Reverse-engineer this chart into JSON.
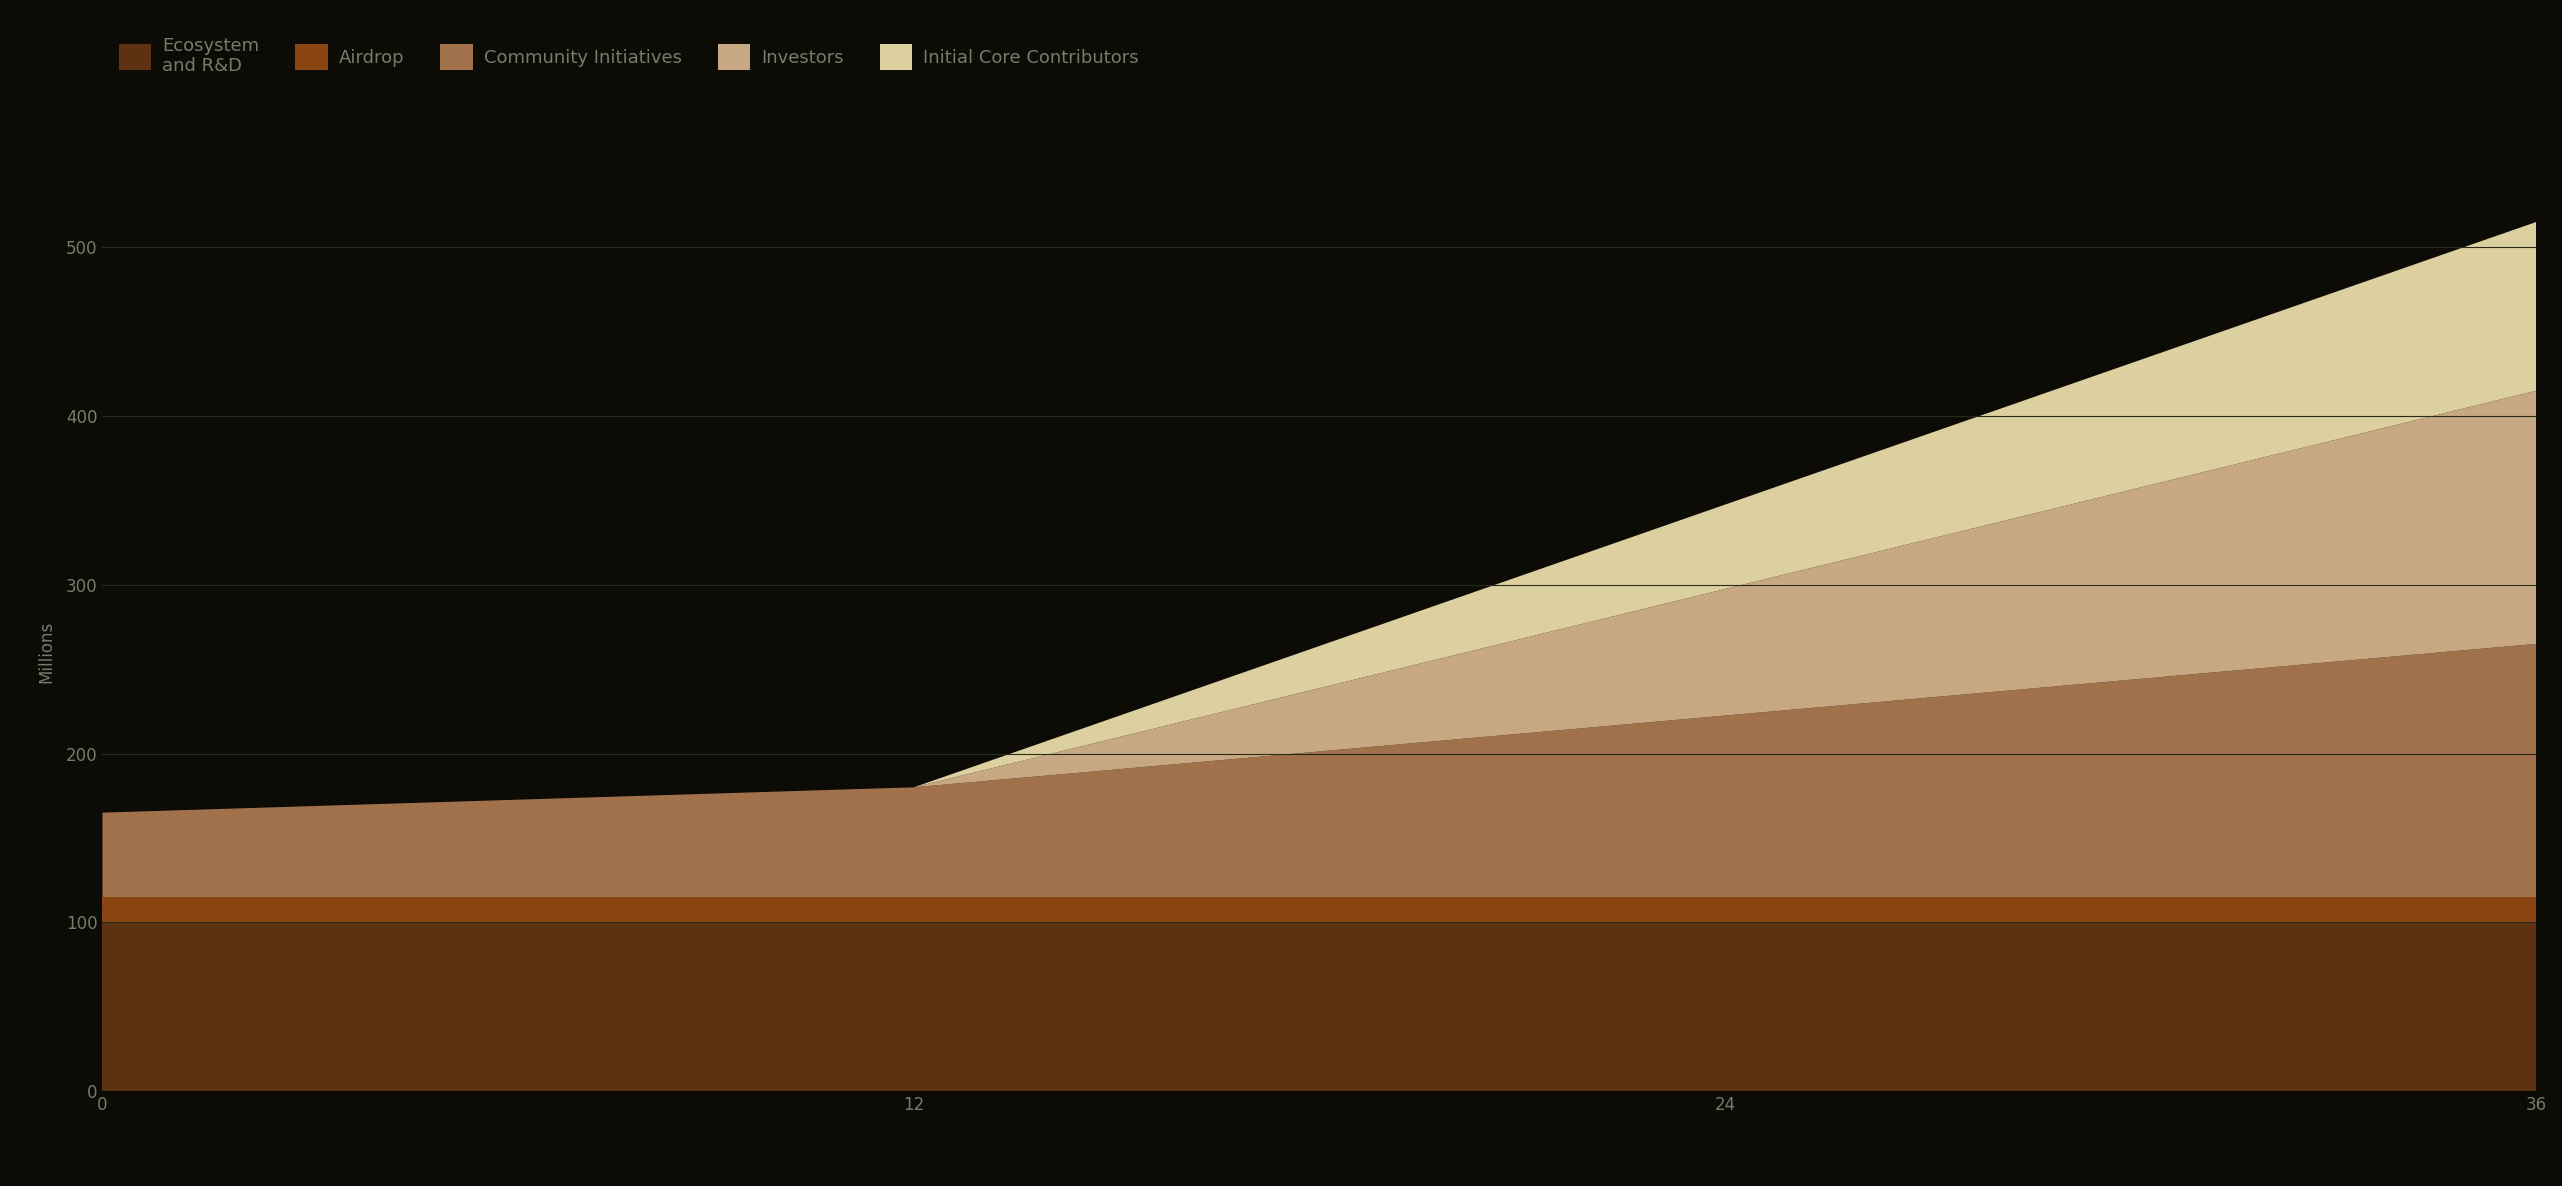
{
  "background_color": "#0d0b05",
  "series_labels": [
    "Ecosystem\nand R&D",
    "Airdrop",
    "Community Initiatives",
    "Investors",
    "Initial Core Contributors"
  ],
  "series_colors": [
    "#5C3210",
    "#8B4513",
    "#A0714A",
    "#C8A882",
    "#DDD0A0"
  ],
  "x_max": 36,
  "x_ticks": [
    0,
    12,
    24,
    36
  ],
  "y_ticks": [
    0,
    100,
    200,
    300,
    400,
    500
  ],
  "ylabel": "Millions",
  "grid_color": "#2a2a18",
  "tick_color": "#7a7a6a",
  "legend_fontsize": 13,
  "axis_fontsize": 12,
  "figsize": [
    25.62,
    11.86
  ],
  "dpi": 100,
  "ylim": [
    0,
    520
  ]
}
